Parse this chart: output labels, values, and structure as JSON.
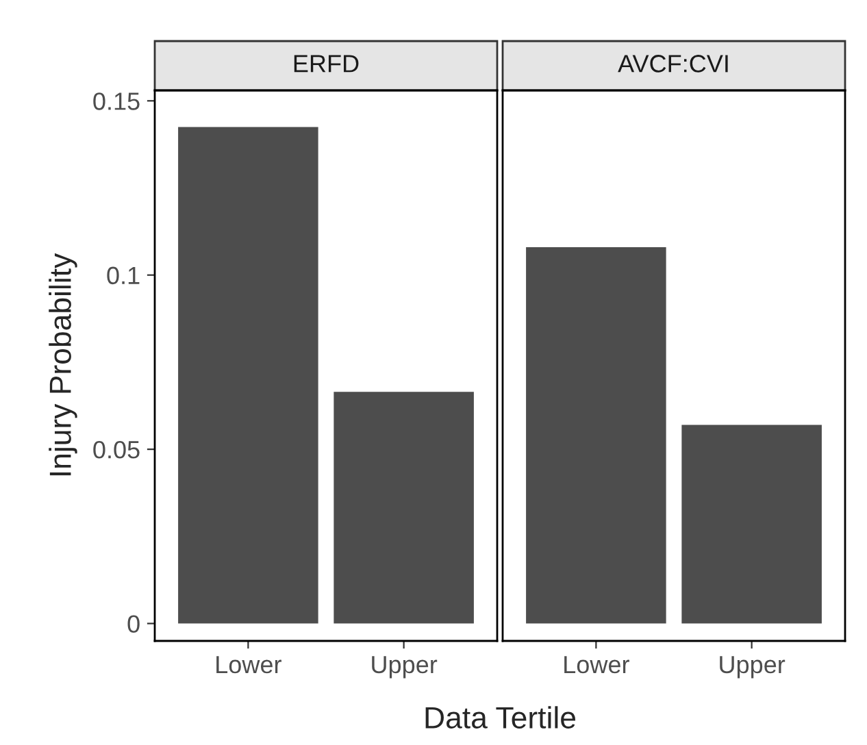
{
  "chart_data": [
    {
      "type": "bar",
      "title": "ERFD",
      "xlabel": "Data Tertile",
      "ylabel": "Injury Probability",
      "categories": [
        "Lower",
        "Upper"
      ],
      "values": [
        0.1425,
        0.0665
      ],
      "color": "#4d4d4d",
      "ylim": [
        -0.005,
        0.153
      ],
      "yticks": [
        {
          "value": 0,
          "label": "0"
        },
        0.05,
        {
          "value": 0.1,
          "label": "0.1"
        },
        0.15
      ],
      "grid": false
    },
    {
      "type": "bar",
      "title": "AVCF:CVI",
      "categories": [
        "Lower",
        "Upper"
      ],
      "values": [
        0.108,
        0.057
      ],
      "color": "#4d4d4d",
      "ylim": [
        -0.005,
        0.153
      ],
      "grid": false,
      "tick_labels": "x"
    }
  ]
}
